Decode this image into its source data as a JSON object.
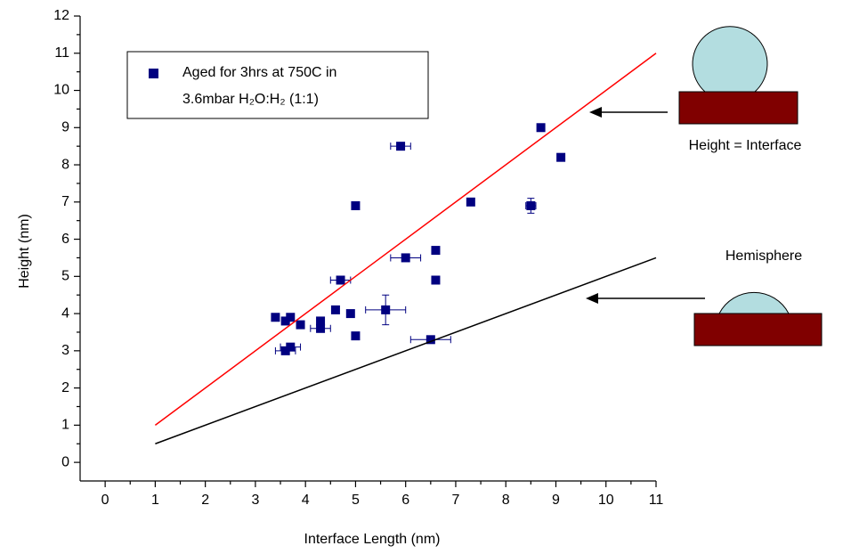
{
  "chart_data": {
    "type": "scatter",
    "xlabel": "Interface Length (nm)",
    "ylabel": "Height (nm)",
    "xlim": [
      -0.5,
      11
    ],
    "ylim": [
      -0.5,
      12
    ],
    "xticks": [
      0,
      1,
      2,
      3,
      4,
      5,
      6,
      7,
      8,
      9,
      10,
      11
    ],
    "yticks": [
      0,
      1,
      2,
      3,
      4,
      5,
      6,
      7,
      8,
      9,
      10,
      11,
      12
    ],
    "legend": "top-left",
    "series": [
      {
        "name": "Aged for 3hrs at 750C in\n3.6mbar H₂O:H₂ (1:1)",
        "type": "scatter",
        "color": "#000080",
        "x": [
          3.4,
          3.6,
          3.7,
          3.6,
          3.7,
          3.9,
          4.3,
          4.3,
          4.6,
          4.7,
          4.9,
          5.0,
          5.0,
          5.6,
          5.9,
          6.0,
          6.5,
          6.6,
          6.6,
          7.3,
          8.5,
          8.7,
          9.1
        ],
        "values": [
          3.9,
          3.8,
          3.9,
          3.0,
          3.1,
          3.7,
          3.8,
          3.6,
          4.1,
          4.9,
          4.0,
          3.4,
          6.9,
          4.1,
          8.5,
          5.5,
          3.3,
          5.7,
          4.9,
          7.0,
          6.9,
          9.0,
          8.2
        ],
        "xerr": [
          null,
          null,
          null,
          0.2,
          0.2,
          null,
          null,
          0.2,
          null,
          0.2,
          null,
          null,
          null,
          0.4,
          0.2,
          0.3,
          0.4,
          null,
          null,
          null,
          0.1,
          null,
          null
        ],
        "yerr": [
          null,
          null,
          null,
          null,
          null,
          null,
          null,
          null,
          null,
          null,
          null,
          null,
          null,
          0.4,
          null,
          null,
          null,
          null,
          null,
          null,
          0.2,
          null,
          null
        ]
      },
      {
        "type": "line",
        "color": "#ff0000",
        "x": [
          1,
          11
        ],
        "values": [
          1,
          11
        ]
      },
      {
        "type": "line",
        "color": "#000000",
        "x": [
          1,
          11
        ],
        "values": [
          0.5,
          5.5
        ]
      }
    ],
    "annotations": [
      "Height = Interface",
      "Hemisphere"
    ]
  }
}
